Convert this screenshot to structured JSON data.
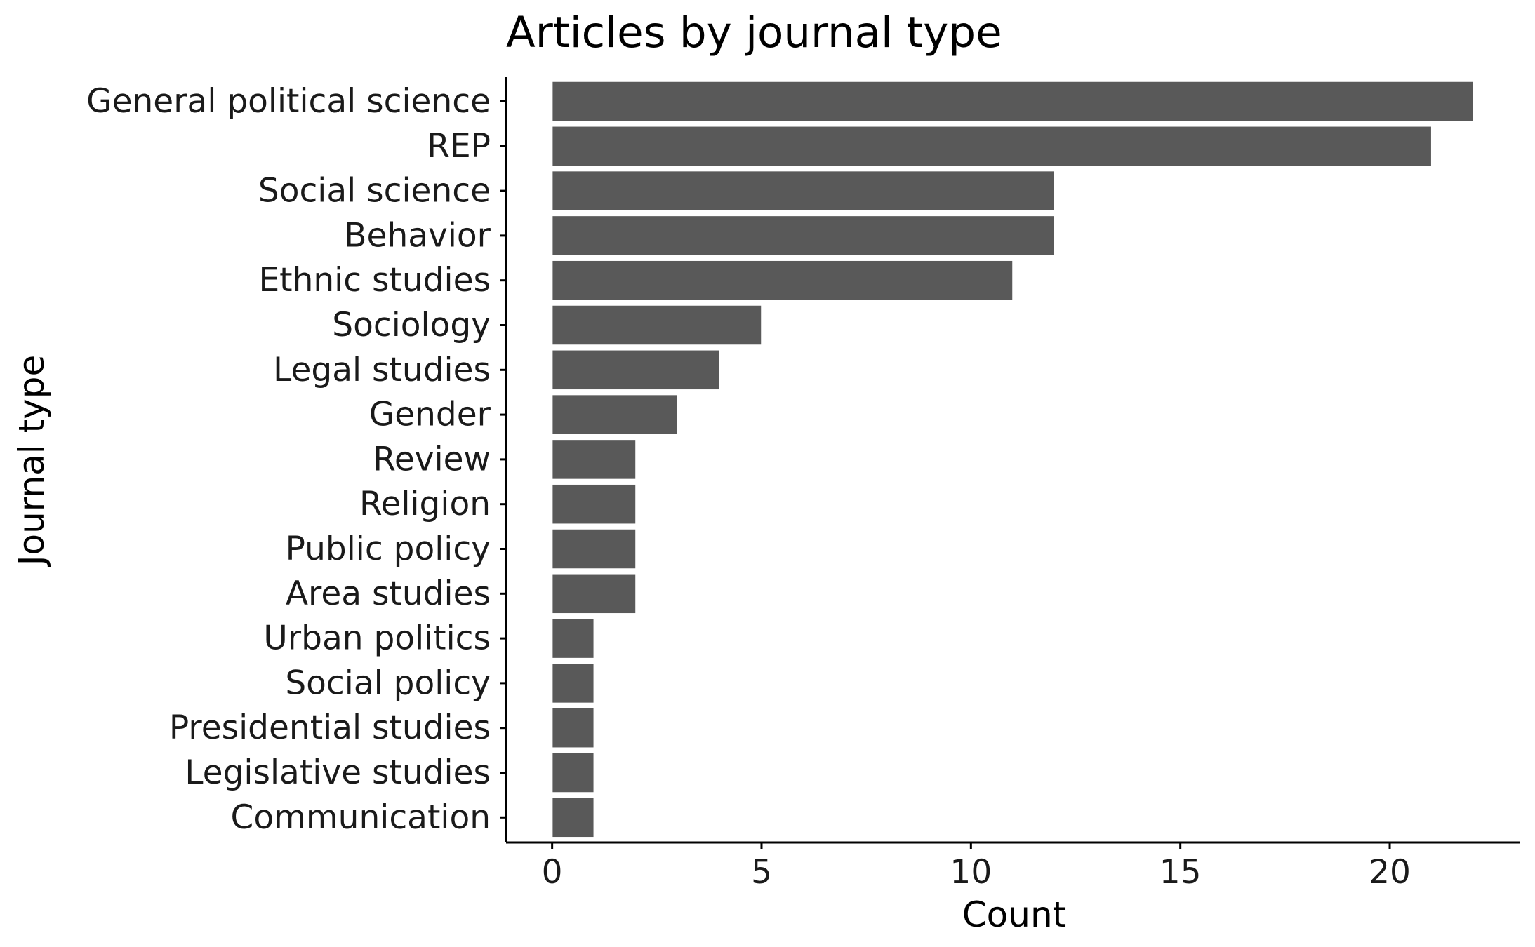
{
  "chart_data": {
    "type": "bar",
    "orientation": "horizontal",
    "title": "Articles by journal type",
    "xlabel": "Count",
    "ylabel": "Journal type",
    "categories": [
      "General political science",
      "REP",
      "Social science",
      "Behavior",
      "Ethnic studies",
      "Sociology",
      "Legal studies",
      "Gender",
      "Review",
      "Religion",
      "Public policy",
      "Area studies",
      "Urban politics",
      "Social policy",
      "Presidential studies",
      "Legislative studies",
      "Communication"
    ],
    "values": [
      22,
      21,
      12,
      12,
      11,
      5,
      4,
      3,
      2,
      2,
      2,
      2,
      1,
      1,
      1,
      1,
      1
    ],
    "xticks": [
      0,
      5,
      10,
      15,
      20
    ],
    "xlim": [
      -1.1,
      23.1
    ],
    "grid": false,
    "legend": "none",
    "bar_color": "#595959",
    "bar_outline_color": "#ffffff",
    "axis_color": "#000000"
  }
}
